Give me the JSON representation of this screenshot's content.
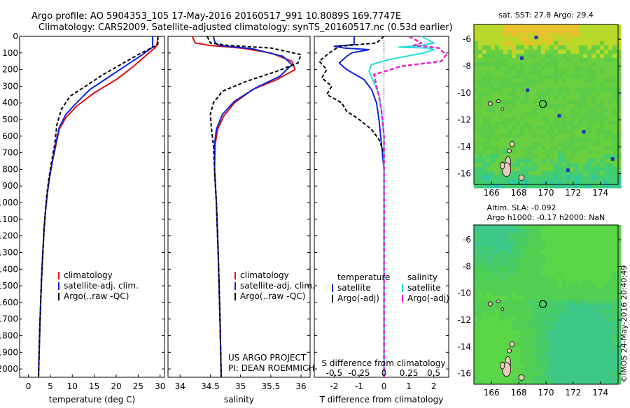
{
  "header": {
    "line1": "Argo profile: AO 5904353_105 17-May-2016 20160517_991 10.8089S 169.7747E",
    "line2": "Climatology: CARS2009. Satellite-adjusted climatology: synTS_20160517.nc (0.53d earlier)"
  },
  "side_stamp": "©IMOS 24-May-2016 20:40:49",
  "colors": {
    "climatology": "#dd1111",
    "satellite": "#1122dd",
    "argo": "#000000",
    "satellite_salinity": "#22dddd",
    "argo_salinity": "#ee22cc"
  },
  "chart_data": [
    {
      "id": "temperature",
      "type": "line",
      "xlabel": "temperature (deg C)",
      "xticks": [
        0,
        5,
        10,
        15,
        20,
        25,
        30
      ],
      "xlim": [
        -2,
        31
      ],
      "ylim": [
        0,
        2050
      ],
      "yticks": [
        0,
        100,
        200,
        300,
        400,
        500,
        600,
        700,
        800,
        900,
        1000,
        1100,
        1200,
        1300,
        1400,
        1500,
        1600,
        1700,
        1800,
        1900,
        2000
      ],
      "legend": [
        "climatology",
        "satellite-adj. clim.",
        "Argo(..raw -QC)"
      ],
      "series": [
        {
          "name": "climatology",
          "color": "#dd1111",
          "dash": "",
          "width": 2,
          "points": [
            [
              29.5,
              0
            ],
            [
              29.3,
              50
            ],
            [
              29,
              65
            ],
            [
              27,
              110
            ],
            [
              24,
              180
            ],
            [
              20,
              260
            ],
            [
              15,
              340
            ],
            [
              11,
              420
            ],
            [
              8.5,
              490
            ],
            [
              7,
              560
            ],
            [
              6.3,
              650
            ],
            [
              5.5,
              750
            ],
            [
              4.8,
              850
            ],
            [
              4.3,
              950
            ],
            [
              3.9,
              1050
            ],
            [
              3.6,
              1150
            ],
            [
              3.3,
              1300
            ],
            [
              3.0,
              1450
            ],
            [
              2.8,
              1600
            ],
            [
              2.6,
              1750
            ],
            [
              2.45,
              1900
            ],
            [
              2.3,
              2050
            ]
          ]
        },
        {
          "name": "satellite-adj. clim.",
          "color": "#1122dd",
          "dash": "",
          "width": 2,
          "points": [
            [
              28.3,
              0
            ],
            [
              28.3,
              50
            ],
            [
              28.3,
              65
            ],
            [
              26,
              110
            ],
            [
              22,
              180
            ],
            [
              18,
              250
            ],
            [
              14,
              320
            ],
            [
              11,
              400
            ],
            [
              8.5,
              470
            ],
            [
              7,
              550
            ],
            [
              6.2,
              650
            ],
            [
              5.5,
              750
            ],
            [
              4.8,
              850
            ],
            [
              4.3,
              950
            ],
            [
              3.9,
              1050
            ],
            [
              3.6,
              1150
            ],
            [
              3.3,
              1300
            ],
            [
              3.0,
              1450
            ],
            [
              2.8,
              1600
            ],
            [
              2.6,
              1750
            ],
            [
              2.45,
              1900
            ],
            [
              2.3,
              2050
            ]
          ]
        },
        {
          "name": "Argo(..raw -QC)",
          "color": "#000000",
          "dash": "5,3",
          "width": 2,
          "points": [
            [
              29.5,
              0
            ],
            [
              29.5,
              50
            ],
            [
              28,
              70
            ],
            [
              25,
              110
            ],
            [
              21,
              170
            ],
            [
              17,
              230
            ],
            [
              13,
              300
            ],
            [
              9.5,
              360
            ],
            [
              7.5,
              440
            ],
            [
              6.5,
              530
            ],
            [
              6,
              650
            ],
            [
              5.3,
              750
            ],
            [
              4.7,
              850
            ],
            [
              4.2,
              950
            ],
            [
              3.9,
              1050
            ],
            [
              3.6,
              1150
            ],
            [
              3.3,
              1300
            ],
            [
              3.0,
              1450
            ],
            [
              2.8,
              1600
            ],
            [
              2.6,
              1750
            ],
            [
              2.45,
              1900
            ],
            [
              2.3,
              2050
            ]
          ]
        }
      ]
    },
    {
      "id": "salinity",
      "type": "line",
      "xlabel": "salinity",
      "xticks": [
        34,
        34.5,
        35,
        35.5,
        36
      ],
      "xlim": [
        33.8,
        36.15
      ],
      "ylim": [
        0,
        2050
      ],
      "legend": [
        "climatology",
        "satellite-adj. clim.",
        "Argo(..raw -QC)"
      ],
      "annotation": [
        "US ARGO PROJECT",
        "PI: DEAN ROEMMICH"
      ],
      "series": [
        {
          "name": "climatology",
          "color": "#dd1111",
          "dash": "",
          "width": 2,
          "points": [
            [
              34.2,
              0
            ],
            [
              34.25,
              40
            ],
            [
              34.5,
              55
            ],
            [
              35.0,
              70
            ],
            [
              35.5,
              100
            ],
            [
              35.85,
              150
            ],
            [
              35.9,
              200
            ],
            [
              35.6,
              260
            ],
            [
              35.2,
              320
            ],
            [
              34.9,
              400
            ],
            [
              34.72,
              480
            ],
            [
              34.62,
              560
            ],
            [
              34.58,
              650
            ],
            [
              34.57,
              800
            ],
            [
              34.6,
              1000
            ],
            [
              34.63,
              1300
            ],
            [
              34.66,
              1700
            ],
            [
              34.68,
              2050
            ]
          ]
        },
        {
          "name": "satellite-adj. clim.",
          "color": "#1122dd",
          "dash": "",
          "width": 2,
          "points": [
            [
              34.55,
              0
            ],
            [
              34.58,
              40
            ],
            [
              34.65,
              55
            ],
            [
              35.2,
              75
            ],
            [
              35.7,
              120
            ],
            [
              35.85,
              170
            ],
            [
              35.65,
              240
            ],
            [
              35.25,
              310
            ],
            [
              34.9,
              390
            ],
            [
              34.7,
              470
            ],
            [
              34.6,
              560
            ],
            [
              34.57,
              650
            ],
            [
              34.57,
              800
            ],
            [
              34.6,
              1000
            ],
            [
              34.63,
              1300
            ],
            [
              34.66,
              1700
            ],
            [
              34.68,
              2050
            ]
          ]
        },
        {
          "name": "Argo(..raw -QC)",
          "color": "#000000",
          "dash": "5,3",
          "width": 2,
          "points": [
            [
              34.45,
              0
            ],
            [
              34.5,
              40
            ],
            [
              34.8,
              55
            ],
            [
              35.5,
              70
            ],
            [
              36.0,
              110
            ],
            [
              35.95,
              160
            ],
            [
              35.6,
              210
            ],
            [
              35.1,
              270
            ],
            [
              34.7,
              330
            ],
            [
              34.55,
              400
            ],
            [
              34.5,
              470
            ],
            [
              34.52,
              560
            ],
            [
              34.55,
              650
            ],
            [
              34.57,
              800
            ],
            [
              34.6,
              1000
            ],
            [
              34.63,
              1300
            ],
            [
              34.66,
              1700
            ],
            [
              34.68,
              2050
            ]
          ]
        }
      ]
    },
    {
      "id": "difference",
      "type": "line",
      "xlabel": "T difference from climatology",
      "xlabel_top": "S difference from climatology",
      "xticks": [
        -2,
        -1,
        0,
        1,
        2
      ],
      "xticks_s": [
        "-0.5",
        "-0.25",
        "0",
        "0.25",
        "0.5"
      ],
      "xlim": [
        -2.8,
        2.6
      ],
      "ylim": [
        0,
        2050
      ],
      "legend_titles": [
        "temperature",
        "salinity"
      ],
      "legend_items": [
        "satellite",
        "Argo(-adj)",
        "satellite",
        "Argo(-adj)"
      ],
      "series": [
        {
          "name": "temperature satellite",
          "color": "#1122dd",
          "dash": "",
          "width": 2,
          "points": [
            [
              -1.2,
              0
            ],
            [
              -1.2,
              50
            ],
            [
              -2.0,
              60
            ],
            [
              -1.6,
              70
            ],
            [
              -0.6,
              80
            ],
            [
              -1.3,
              100
            ],
            [
              -1.5,
              120
            ],
            [
              -1.8,
              160
            ],
            [
              -1.5,
              200
            ],
            [
              -0.8,
              260
            ],
            [
              -0.5,
              320
            ],
            [
              -0.3,
              400
            ],
            [
              -0.2,
              500
            ],
            [
              -0.1,
              650
            ],
            [
              0,
              800
            ],
            [
              0,
              1200
            ],
            [
              0,
              1600
            ],
            [
              0,
              2050
            ]
          ]
        },
        {
          "name": "temperature Argo(-adj)",
          "color": "#000000",
          "dash": "5,3",
          "width": 2,
          "points": [
            [
              0,
              0
            ],
            [
              -0.3,
              40
            ],
            [
              -1.8,
              60
            ],
            [
              -2.2,
              100
            ],
            [
              -2.6,
              150
            ],
            [
              -2.3,
              200
            ],
            [
              -2.5,
              250
            ],
            [
              -2.1,
              300
            ],
            [
              -2.3,
              350
            ],
            [
              -1.7,
              400
            ],
            [
              -1.5,
              450
            ],
            [
              -1.0,
              500
            ],
            [
              -0.5,
              560
            ],
            [
              -0.2,
              620
            ],
            [
              0,
              700
            ],
            [
              0,
              1000
            ],
            [
              0,
              1400
            ],
            [
              0,
              1800
            ],
            [
              0,
              2050
            ]
          ]
        },
        {
          "name": "salinity satellite",
          "color": "#22dddd",
          "dash": "",
          "width": 2,
          "points": [
            [
              1.5,
              0
            ],
            [
              2.0,
              40
            ],
            [
              1.5,
              55
            ],
            [
              0.6,
              65
            ],
            [
              1.8,
              70
            ],
            [
              2.0,
              80
            ],
            [
              1.6,
              100
            ],
            [
              0.2,
              140
            ],
            [
              -0.5,
              170
            ],
            [
              -0.6,
              210
            ],
            [
              -0.4,
              280
            ],
            [
              -0.2,
              350
            ],
            [
              -0.1,
              450
            ],
            [
              0,
              600
            ],
            [
              0,
              900
            ],
            [
              0,
              1400
            ],
            [
              0,
              1800
            ],
            [
              0,
              2050
            ]
          ]
        },
        {
          "name": "salinity Argo(-adj)",
          "color": "#ee22cc",
          "dash": "6,3",
          "width": 2.5,
          "points": [
            [
              1.0,
              0
            ],
            [
              1.5,
              40
            ],
            [
              1.2,
              55
            ],
            [
              1.6,
              60
            ],
            [
              2.2,
              70
            ],
            [
              2.5,
              110
            ],
            [
              2.3,
              150
            ],
            [
              0.7,
              180
            ],
            [
              -0.4,
              230
            ],
            [
              -0.3,
              300
            ],
            [
              -0.2,
              360
            ],
            [
              -0.1,
              450
            ],
            [
              0,
              600
            ],
            [
              0,
              900
            ],
            [
              0,
              1400
            ],
            [
              0,
              1800
            ],
            [
              0,
              2050
            ]
          ]
        }
      ]
    },
    {
      "id": "sst_map",
      "type": "heatmap",
      "title": "sat. SST: 27.8  Argo: 29.4",
      "xticks": [
        "166",
        "168",
        "170",
        "172",
        "174"
      ],
      "yticks": [
        "-6",
        "-8",
        "-10",
        "-12",
        "-14",
        "-16"
      ],
      "xlim": [
        164.7,
        175.3
      ],
      "ylim": [
        -16.8,
        -4.9
      ],
      "marker": [
        169.77,
        -10.81
      ]
    },
    {
      "id": "sla_map",
      "type": "heatmap",
      "title_line1": "Altim. SLA: -0.092",
      "title_line2": "Argo h1000: -0.17  h2000: NaN",
      "xticks": [
        "166",
        "168",
        "170",
        "172",
        "174"
      ],
      "yticks": [
        "-6",
        "-8",
        "-10",
        "-12",
        "-14",
        "-16"
      ],
      "xlim": [
        164.7,
        175.3
      ],
      "ylim": [
        -16.8,
        -4.9
      ],
      "marker": [
        169.77,
        -10.81
      ]
    }
  ]
}
